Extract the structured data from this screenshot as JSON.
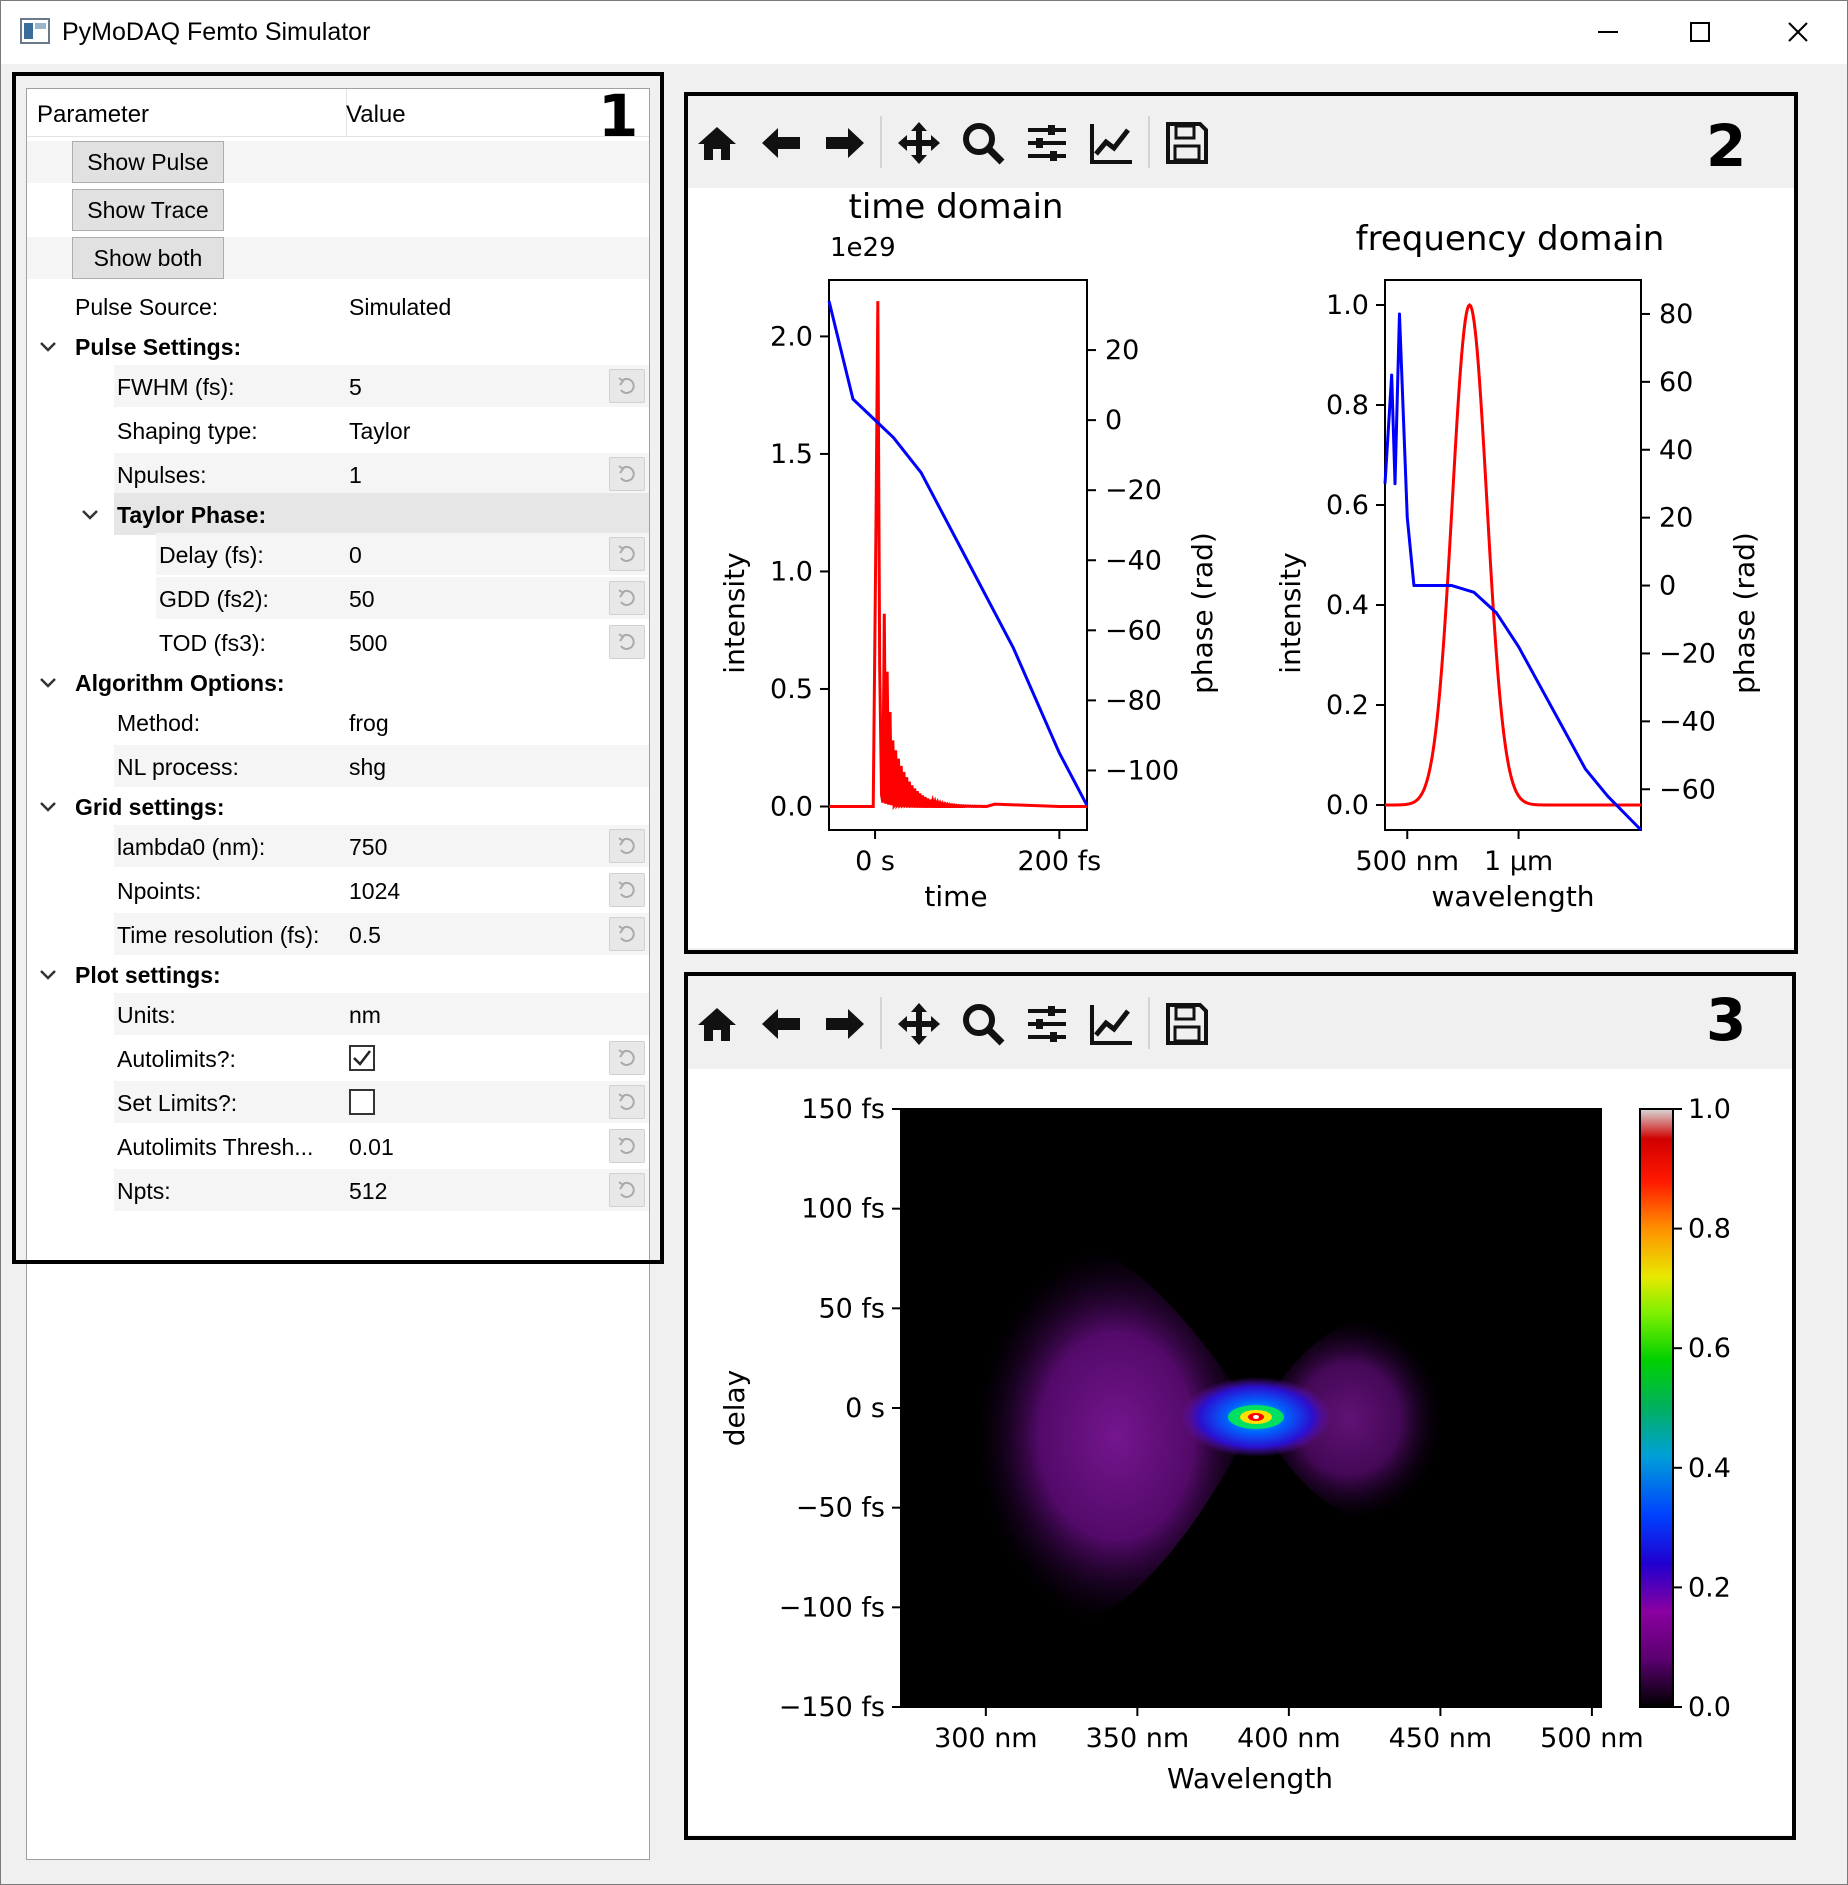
{
  "window": {
    "title": "PyMoDAQ Femto Simulator"
  },
  "tree": {
    "header": {
      "parameter": "Parameter",
      "value": "Value"
    },
    "buttons": {
      "show_pulse": "Show Pulse",
      "show_trace": "Show Trace",
      "show_both": "Show both"
    },
    "pulse_source": {
      "label": "Pulse Source:",
      "value": "Simulated"
    },
    "pulse_settings": {
      "label": "Pulse Settings:",
      "fwhm": {
        "label": "FWHM (fs):",
        "value": "5"
      },
      "shaping_type": {
        "label": "Shaping type:",
        "value": "Taylor"
      },
      "npulses": {
        "label": "Npulses:",
        "value": "1"
      },
      "taylor_phase": {
        "label": "Taylor Phase:",
        "delay": {
          "label": "Delay (fs):",
          "value": "0"
        },
        "gdd": {
          "label": "GDD (fs2):",
          "value": "50"
        },
        "tod": {
          "label": "TOD (fs3):",
          "value": "500"
        }
      }
    },
    "algorithm_options": {
      "label": "Algorithm Options:",
      "method": {
        "label": "Method:",
        "value": "frog"
      },
      "nl_process": {
        "label": "NL process:",
        "value": "shg"
      }
    },
    "grid_settings": {
      "label": "Grid settings:",
      "lambda0": {
        "label": "lambda0 (nm):",
        "value": "750"
      },
      "npoints": {
        "label": "Npoints:",
        "value": "1024"
      },
      "time_resolution": {
        "label": "Time resolution (fs):",
        "value": "0.5"
      }
    },
    "plot_settings": {
      "label": "Plot settings:",
      "units": {
        "label": "Units:",
        "value": "nm"
      },
      "autolimits": {
        "label": "Autolimits?:",
        "checked": true
      },
      "set_limits": {
        "label": "Set Limits?:",
        "checked": false
      },
      "autolimits_thresh": {
        "label": "Autolimits Thresh...",
        "value": "0.01"
      },
      "npts": {
        "label": "Npts:",
        "value": "512"
      }
    }
  },
  "annotations": {
    "box1": "1",
    "box2": "2",
    "box3": "3"
  },
  "toolbar_icons": [
    "home-icon",
    "back-arrow-icon",
    "forward-arrow-icon",
    "pan-icon",
    "zoom-icon",
    "configure-subplots-icon",
    "edit-axis-icon",
    "save-icon"
  ],
  "colors": {
    "pulse_intensity": "#ff0000",
    "pulse_phase": "#0000ff"
  },
  "chart_data": [
    {
      "type": "line",
      "title": "time domain",
      "xlabel": "time",
      "ylabel": "intensity",
      "y2label": "phase (rad)",
      "offset_text": "1e29",
      "xticklabels": [
        "0 s",
        "200 fs"
      ],
      "yticklabels": [
        "0.0",
        "0.5",
        "1.0",
        "1.5",
        "2.0"
      ],
      "y2ticklabels": [
        "20",
        "0",
        "−20",
        "−40",
        "−60",
        "−80",
        "−100"
      ],
      "xlim": [
        -50,
        230
      ],
      "ylim": [
        -0.1,
        2.24
      ],
      "y2lim": [
        -117,
        40
      ],
      "series": [
        {
          "x": [
            -50,
            0,
            2,
            5,
            8,
            12,
            15,
            18,
            22,
            26,
            30,
            40,
            60,
            100,
            150,
            200,
            230
          ],
          "values": [
            0,
            0,
            0.3,
            2.15,
            0.3,
            0.82,
            0.5,
            0.4,
            0.3,
            0.2,
            0.15,
            0.08,
            0.04,
            0.01,
            0,
            0,
            0
          ]
        },
        {
          "x": [
            -50,
            -24,
            0,
            20,
            50,
            100,
            150,
            200,
            230
          ],
          "values": [
            34,
            6,
            0,
            -5,
            -15,
            -40,
            -65,
            -95,
            -110
          ]
        }
      ]
    },
    {
      "type": "line",
      "title": "frequency domain",
      "xlabel": "wavelength",
      "ylabel": "intensity",
      "y2label": "phase (rad)",
      "xticklabels": [
        "500 nm",
        "1 μm"
      ],
      "yticklabels": [
        "0.0",
        "0.2",
        "0.4",
        "0.6",
        "0.8",
        "1.0"
      ],
      "y2ticklabels": [
        "80",
        "60",
        "40",
        "20",
        "0",
        "−20",
        "−40",
        "−60"
      ],
      "xlim": [
        400,
        1550
      ],
      "ylim": [
        -0.05,
        1.05
      ],
      "y2lim": [
        -72,
        90
      ],
      "series": [
        {
          "x": [
            400,
            600,
            650,
            700,
            750,
            780,
            800,
            850,
            900,
            950,
            1000,
            1100,
            1550
          ],
          "values": [
            0,
            0.01,
            0.2,
            0.6,
            0.95,
            1.0,
            0.95,
            0.6,
            0.25,
            0.08,
            0.02,
            0,
            0
          ]
        },
        {
          "x": [
            400,
            430,
            445,
            465,
            500,
            530,
            600,
            700,
            800,
            900,
            1000,
            1100,
            1200,
            1300,
            1400,
            1550
          ],
          "values": [
            30,
            62,
            30,
            80,
            20,
            0,
            0,
            0,
            -2,
            -8,
            -18,
            -30,
            -42,
            -54,
            -62,
            -72
          ]
        }
      ]
    },
    {
      "type": "heatmap",
      "xlabel": "Wavelength",
      "ylabel": "delay",
      "xticklabels": [
        "300 nm",
        "350 nm",
        "400 nm",
        "450 nm",
        "500 nm"
      ],
      "yticklabels": [
        "150 fs",
        "100 fs",
        "50 fs",
        "0 s",
        "−50 fs",
        "−100 fs",
        "−150 fs"
      ],
      "xlim": [
        272,
        503
      ],
      "ylim": [
        -150,
        150
      ],
      "peak": {
        "x": 390,
        "y": 0,
        "value": 1.0
      },
      "colorbar": {
        "ticks": [
          "0.0",
          "0.2",
          "0.4",
          "0.6",
          "0.8",
          "1.0"
        ],
        "cmap": "spectral"
      }
    }
  ]
}
